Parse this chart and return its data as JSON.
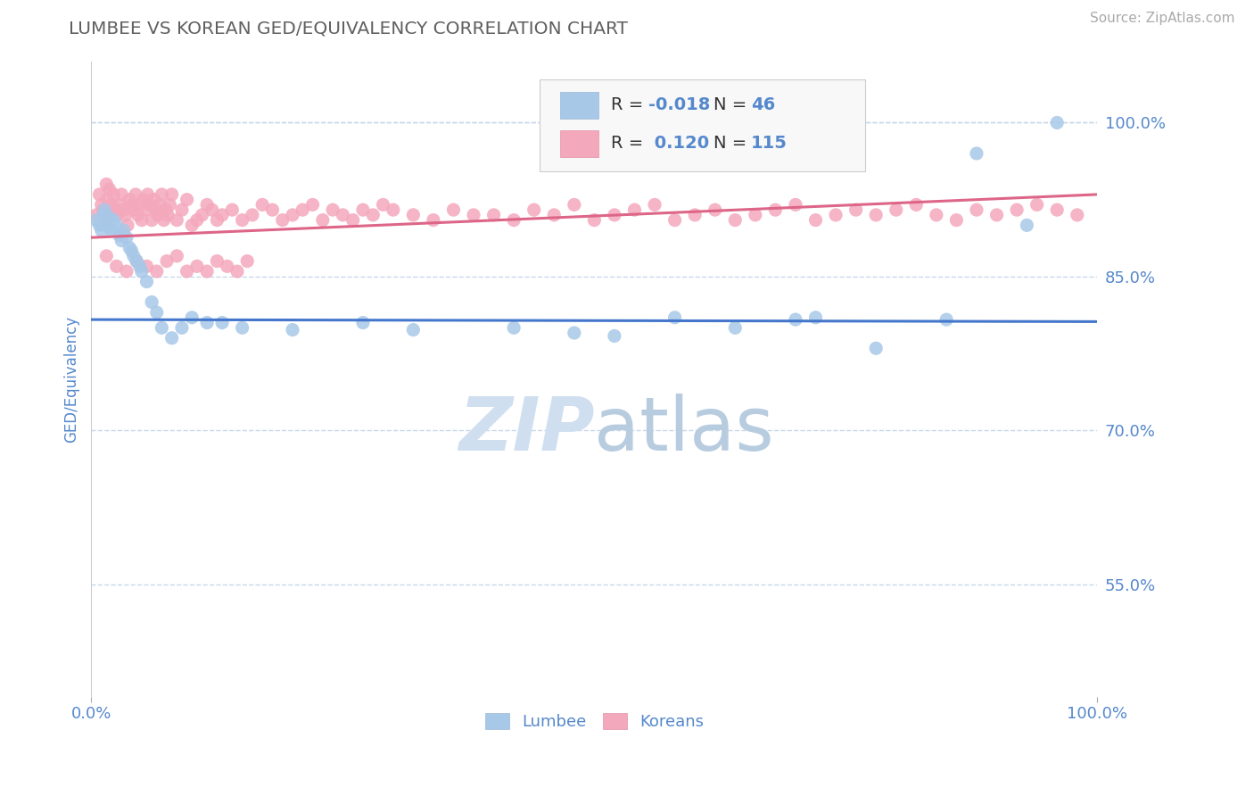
{
  "title": "LUMBEE VS KOREAN GED/EQUIVALENCY CORRELATION CHART",
  "source": "Source: ZipAtlas.com",
  "ylabel": "GED/Equivalency",
  "lumbee_R": -0.018,
  "lumbee_N": 46,
  "korean_R": 0.12,
  "korean_N": 115,
  "xlim": [
    0.0,
    1.0
  ],
  "ylim": [
    0.44,
    1.06
  ],
  "yticks": [
    0.55,
    0.7,
    0.85,
    1.0
  ],
  "ytick_labels": [
    "55.0%",
    "70.0%",
    "85.0%",
    "100.0%"
  ],
  "lumbee_color": "#a8c8e8",
  "korean_color": "#f4a8bc",
  "lumbee_line_color": "#4477cc",
  "korean_line_color": "#dd6688",
  "grid_color": "#c8d8ea",
  "background_color": "#ffffff",
  "title_color": "#606060",
  "axis_label_color": "#5588cc",
  "watermark_color": "#d0dff0",
  "lumbee_trend_start": 0.808,
  "lumbee_trend_end": 0.806,
  "korean_trend_start": 0.888,
  "korean_trend_end": 0.93,
  "lumbee_x": [
    0.005,
    0.008,
    0.01,
    0.012,
    0.013,
    0.015,
    0.017,
    0.018,
    0.02,
    0.022,
    0.025,
    0.028,
    0.03,
    0.032,
    0.035,
    0.038,
    0.04,
    0.042,
    0.045,
    0.048,
    0.05,
    0.055,
    0.06,
    0.065,
    0.07,
    0.08,
    0.09,
    0.1,
    0.115,
    0.13,
    0.15,
    0.2,
    0.27,
    0.32,
    0.42,
    0.48,
    0.52,
    0.58,
    0.64,
    0.7,
    0.72,
    0.78,
    0.85,
    0.88,
    0.93,
    0.96
  ],
  "lumbee_y": [
    0.905,
    0.9,
    0.895,
    0.91,
    0.915,
    0.9,
    0.908,
    0.898,
    0.895,
    0.905,
    0.9,
    0.89,
    0.885,
    0.895,
    0.888,
    0.878,
    0.875,
    0.87,
    0.865,
    0.86,
    0.855,
    0.845,
    0.825,
    0.815,
    0.8,
    0.79,
    0.8,
    0.81,
    0.805,
    0.805,
    0.8,
    0.798,
    0.805,
    0.798,
    0.8,
    0.795,
    0.792,
    0.81,
    0.8,
    0.808,
    0.81,
    0.78,
    0.808,
    0.97,
    0.9,
    1.0
  ],
  "korean_x": [
    0.005,
    0.008,
    0.01,
    0.012,
    0.014,
    0.015,
    0.016,
    0.018,
    0.02,
    0.022,
    0.024,
    0.026,
    0.028,
    0.03,
    0.032,
    0.034,
    0.036,
    0.038,
    0.04,
    0.042,
    0.044,
    0.046,
    0.048,
    0.05,
    0.052,
    0.054,
    0.056,
    0.058,
    0.06,
    0.062,
    0.064,
    0.066,
    0.068,
    0.07,
    0.072,
    0.074,
    0.076,
    0.078,
    0.08,
    0.085,
    0.09,
    0.095,
    0.1,
    0.105,
    0.11,
    0.115,
    0.12,
    0.125,
    0.13,
    0.14,
    0.15,
    0.16,
    0.17,
    0.18,
    0.19,
    0.2,
    0.21,
    0.22,
    0.23,
    0.24,
    0.25,
    0.26,
    0.27,
    0.28,
    0.29,
    0.3,
    0.32,
    0.34,
    0.36,
    0.38,
    0.4,
    0.42,
    0.44,
    0.46,
    0.48,
    0.5,
    0.52,
    0.54,
    0.56,
    0.58,
    0.6,
    0.62,
    0.64,
    0.66,
    0.68,
    0.7,
    0.72,
    0.74,
    0.76,
    0.78,
    0.8,
    0.82,
    0.84,
    0.86,
    0.88,
    0.9,
    0.92,
    0.94,
    0.96,
    0.98,
    0.015,
    0.025,
    0.035,
    0.045,
    0.055,
    0.065,
    0.075,
    0.085,
    0.095,
    0.105,
    0.115,
    0.125,
    0.135,
    0.145,
    0.155
  ],
  "korean_y": [
    0.91,
    0.93,
    0.92,
    0.915,
    0.905,
    0.94,
    0.925,
    0.935,
    0.92,
    0.93,
    0.915,
    0.91,
    0.92,
    0.93,
    0.915,
    0.91,
    0.9,
    0.925,
    0.92,
    0.915,
    0.93,
    0.91,
    0.92,
    0.905,
    0.925,
    0.915,
    0.93,
    0.92,
    0.905,
    0.925,
    0.915,
    0.91,
    0.92,
    0.93,
    0.905,
    0.915,
    0.91,
    0.92,
    0.93,
    0.905,
    0.915,
    0.925,
    0.9,
    0.905,
    0.91,
    0.92,
    0.915,
    0.905,
    0.91,
    0.915,
    0.905,
    0.91,
    0.92,
    0.915,
    0.905,
    0.91,
    0.915,
    0.92,
    0.905,
    0.915,
    0.91,
    0.905,
    0.915,
    0.91,
    0.92,
    0.915,
    0.91,
    0.905,
    0.915,
    0.91,
    0.91,
    0.905,
    0.915,
    0.91,
    0.92,
    0.905,
    0.91,
    0.915,
    0.92,
    0.905,
    0.91,
    0.915,
    0.905,
    0.91,
    0.915,
    0.92,
    0.905,
    0.91,
    0.915,
    0.91,
    0.915,
    0.92,
    0.91,
    0.905,
    0.915,
    0.91,
    0.915,
    0.92,
    0.915,
    0.91,
    0.87,
    0.86,
    0.855,
    0.865,
    0.86,
    0.855,
    0.865,
    0.87,
    0.855,
    0.86,
    0.855,
    0.865,
    0.86,
    0.855,
    0.865
  ]
}
